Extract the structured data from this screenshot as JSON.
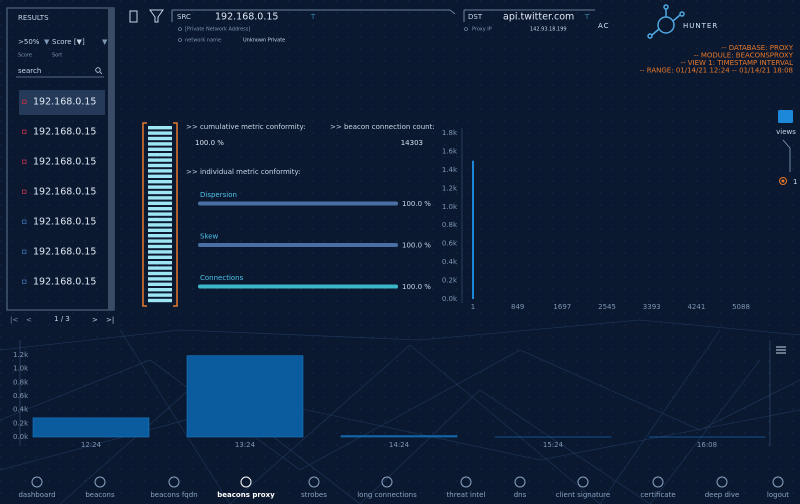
{
  "results_panel": {
    "title": "RESULTS",
    "filter": ">50%",
    "sort_select": "Score [▼]",
    "filter_caption": "Score",
    "sort_caption": "Sort",
    "search_placeholder": "search",
    "items": [
      "192.168.0.15",
      "192.168.0.15",
      "192.168.0.15",
      "192.168.0.15",
      "192.168.0.15",
      "192.168.0.15",
      "192.168.0.15"
    ],
    "pagination": "1 / 3"
  },
  "source": {
    "label": "SRC",
    "ip": "192.168.0.15",
    "address_type": "[Private Network Address]",
    "network_name_label": "network name",
    "network_name": "Unknown Private"
  },
  "destination": {
    "label": "DST",
    "host": "api.twitter.com",
    "proxy_ip_label": "Proxy IP",
    "proxy_ip": "142.93.18.199"
  },
  "logo": {
    "left": "AC",
    "right": "HUNTER"
  },
  "context": [
    "-- DATABASE: PROXY",
    "-- MODULE: BEACONSPROXY",
    "-- VIEW 1: TIMESTAMP INTERVAL",
    "-- RANGE: 01/14/21 12:24 -- 01/14/21 18:08"
  ],
  "views": {
    "label": "views",
    "current": "1"
  },
  "metrics": {
    "cumulative_label": ">> cumulative metric conformity:",
    "cumulative": "100.0 %",
    "count_label": ">> beacon connection count:",
    "count": "14303",
    "individual_label": ">> individual metric conformity:",
    "items": [
      {
        "name": "Dispersion",
        "value": 100,
        "value_label": "100.0 %"
      },
      {
        "name": "Skew",
        "value": 100,
        "value_label": "100.0 %"
      },
      {
        "name": "Connections",
        "value": 100,
        "value_label": "100.0 %"
      }
    ]
  },
  "chart_data": [
    {
      "type": "bar",
      "x": [
        1
      ],
      "values": [
        1500
      ],
      "color": "#1e88d8",
      "xlim": [
        1,
        5088
      ],
      "xticks": [
        1,
        849,
        1697,
        2545,
        3393,
        4241,
        5088
      ],
      "ylim": [
        0,
        1800
      ],
      "yticks": [
        {
          "value": 0,
          "label": "0.0k"
        },
        {
          "value": 200,
          "label": "0.2k"
        },
        {
          "value": 400,
          "label": "0.4k"
        },
        {
          "value": 600,
          "label": "0.6k"
        },
        {
          "value": 800,
          "label": "0.8k"
        },
        {
          "value": 1000,
          "label": "1.0k"
        },
        {
          "value": 1200,
          "label": "1.2k"
        },
        {
          "value": 1400,
          "label": "1.4k"
        },
        {
          "value": 1600,
          "label": "1.6k"
        },
        {
          "value": 1800,
          "label": "1.8k"
        }
      ]
    },
    {
      "type": "bar",
      "categories": [
        "12:24",
        "13:24",
        "14:24",
        "15:24",
        "16:08"
      ],
      "values": [
        280,
        1190,
        20,
        0,
        0
      ],
      "color": "#0b5c9e",
      "ylim": [
        0,
        1200
      ],
      "yticks": [
        {
          "value": 0,
          "label": "0.0k"
        },
        {
          "value": 200,
          "label": "0.2k"
        },
        {
          "value": 400,
          "label": "0.4k"
        },
        {
          "value": 600,
          "label": "0.6k"
        },
        {
          "value": 800,
          "label": "0.8k"
        },
        {
          "value": 1000,
          "label": "1.0k"
        },
        {
          "value": 1200,
          "label": "1.2k"
        }
      ]
    }
  ],
  "nav": {
    "items": [
      "dashboard",
      "beacons",
      "beacons fqdn",
      "beacons proxy",
      "strobes",
      "long connections",
      "threat intel",
      "dns",
      "client signature",
      "certificate",
      "deep dive",
      "logout"
    ],
    "active_index": 3
  }
}
